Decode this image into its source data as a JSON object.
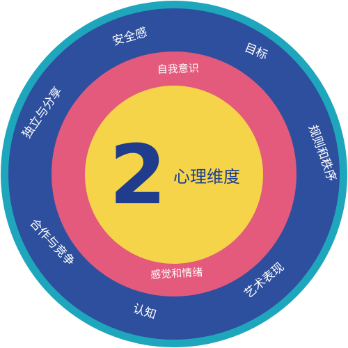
{
  "center": {
    "number": "2",
    "title": "心理维度"
  },
  "inner_ring": {
    "labels": [
      "自我意识",
      "感觉和情绪"
    ]
  },
  "outer_ring": {
    "labels": [
      "安全感",
      "目标",
      "规则和秩序",
      "艺术表现",
      "认知",
      "合作与竞争",
      "独立与分享"
    ]
  },
  "colors": {
    "border": "#1ea6bd",
    "outer_ring": "#2e4f9e",
    "middle_ring": "#e35a7c",
    "center": "#f5d449",
    "number": "#1f3d8c",
    "text_light": "#ffffff"
  }
}
